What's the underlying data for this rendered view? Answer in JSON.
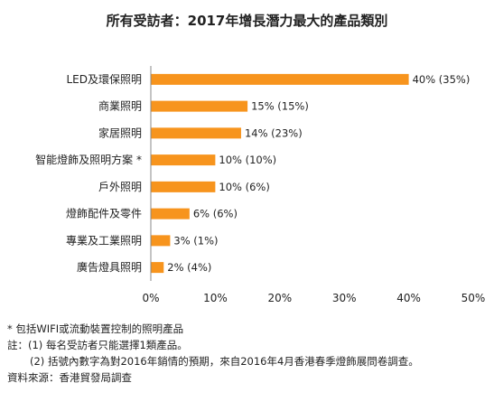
{
  "chart_data": {
    "type": "bar",
    "orientation": "horizontal",
    "title": "所有受訪者：2017年增長潛力最大的產品類別",
    "categories": [
      "LED及環保照明",
      "商業照明",
      "家居照明",
      "智能燈飾及照明方案 *",
      "戶外照明",
      "燈飾配件及零件",
      "專業及工業照明",
      "廣告燈具照明"
    ],
    "values": [
      40,
      15,
      14,
      10,
      10,
      6,
      3,
      2
    ],
    "data_labels": [
      "40% (35%)",
      "15% (15%)",
      "14% (23%)",
      "10% (10%)",
      "10% (6%)",
      "6% (6%)",
      "3% (1%)",
      "2% (4%)"
    ],
    "xlim": [
      0,
      50
    ],
    "x_ticks": [
      "0%",
      "10%",
      "20%",
      "30%",
      "40%",
      "50%"
    ],
    "bar_color": "#F7941D",
    "grid": false
  },
  "notes": {
    "footnote": "* 包括WIFI或流動裝置控制的照明產品",
    "note1": "註：(1) 每名受訪者只能選擇1類產品。",
    "note2": "(2) 括號內數字為對2016年銷情的預期，來自2016年4月香港春季燈飾展問卷調查。",
    "source": "資料來源：香港貿發局調查"
  }
}
